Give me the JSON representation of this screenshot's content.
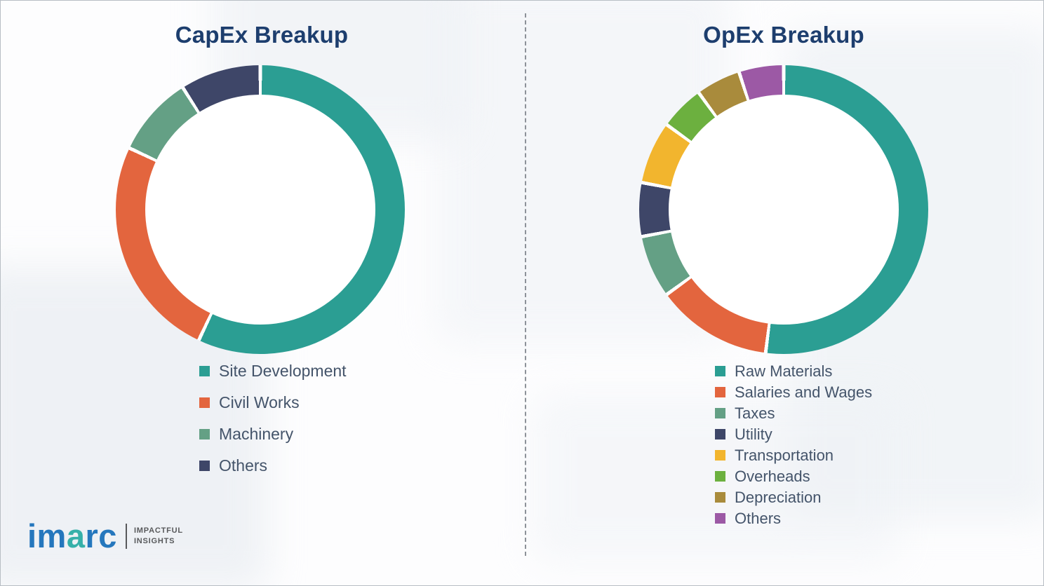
{
  "brand": {
    "logo_prefix": "im",
    "logo_accent": "a",
    "logo_suffix": "rc",
    "tagline": [
      "IMPACTFUL",
      "INSIGHTS"
    ]
  },
  "theme": {
    "title_color": "#1d3e6e",
    "legend_text_color": "#44546a",
    "logo_blue": "#2577bd",
    "logo_teal": "#36b0a9",
    "divider_color": "#8d9299"
  },
  "chart_data": [
    {
      "type": "pie",
      "donut": true,
      "title": "CapEx Breakup",
      "legend_position": "bottom-left",
      "grid": false,
      "segments": [
        {
          "label": "Site Development",
          "value": 57,
          "color": "#2b9e93"
        },
        {
          "label": "Civil Works",
          "value": 25,
          "color": "#e3653e"
        },
        {
          "label": "Machinery",
          "value": 9,
          "color": "#64a085"
        },
        {
          "label": "Others",
          "value": 9,
          "color": "#3e4668"
        }
      ]
    },
    {
      "type": "pie",
      "donut": true,
      "title": "OpEx Breakup",
      "legend_position": "bottom-left",
      "grid": false,
      "segments": [
        {
          "label": "Raw Materials",
          "value": 52,
          "color": "#2b9e93"
        },
        {
          "label": "Salaries and Wages",
          "value": 13,
          "color": "#e3653e"
        },
        {
          "label": "Taxes",
          "value": 7,
          "color": "#64a085"
        },
        {
          "label": "Utility",
          "value": 6,
          "color": "#3e4668"
        },
        {
          "label": "Transportation",
          "value": 7,
          "color": "#f2b52e"
        },
        {
          "label": "Overheads",
          "value": 5,
          "color": "#6cb03f"
        },
        {
          "label": "Depreciation",
          "value": 5,
          "color": "#a98b3c"
        },
        {
          "label": "Others",
          "value": 5,
          "color": "#9c59a5"
        }
      ]
    }
  ]
}
